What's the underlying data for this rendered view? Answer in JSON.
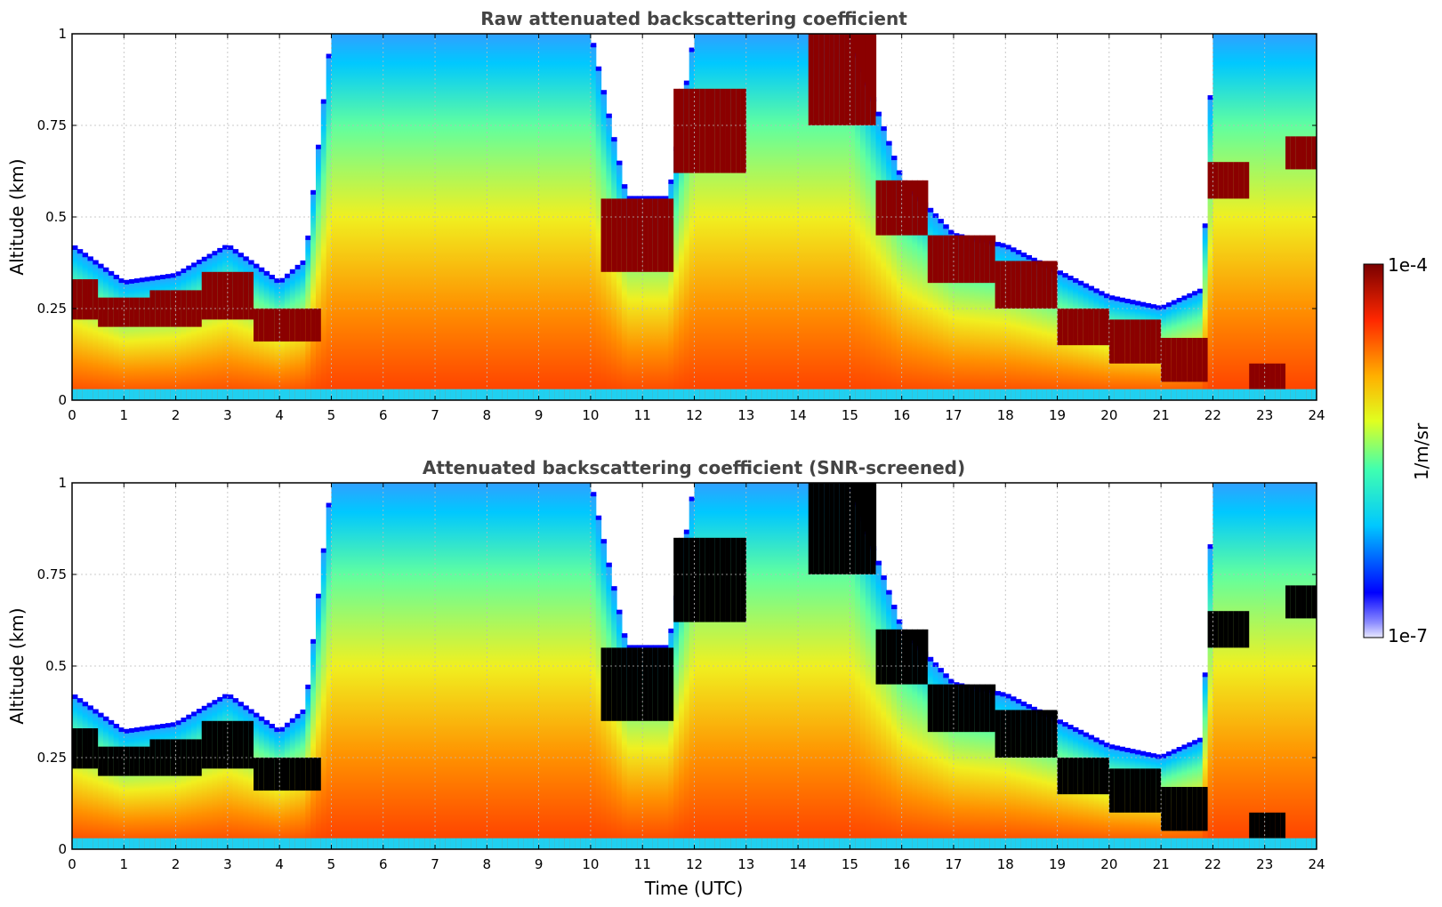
{
  "chart_data": [
    {
      "type": "heatmap",
      "title": "Raw attenuated backscattering coefficient",
      "xlabel": "",
      "ylabel": "Altitude (km)",
      "xlim": [
        0,
        24
      ],
      "ylim": [
        0,
        1
      ],
      "x_ticks": [
        "0",
        "1",
        "2",
        "3",
        "4",
        "5",
        "6",
        "7",
        "8",
        "9",
        "10",
        "11",
        "12",
        "13",
        "14",
        "15",
        "16",
        "17",
        "18",
        "19",
        "20",
        "21",
        "22",
        "23",
        "24"
      ],
      "y_ticks": [
        "0",
        "0.25",
        "0.5",
        "0.75",
        "1"
      ],
      "grid": true,
      "screened": false,
      "colormap": "jet",
      "layer_top_km": [
        [
          0,
          0.42
        ],
        [
          1,
          0.32
        ],
        [
          2,
          0.34
        ],
        [
          3,
          0.42
        ],
        [
          4,
          0.32
        ],
        [
          4.5,
          0.38
        ],
        [
          5,
          1.0
        ],
        [
          6,
          1.0
        ],
        [
          7,
          1.0
        ],
        [
          8,
          1.0
        ],
        [
          9,
          1.0
        ],
        [
          10,
          1.0
        ],
        [
          10.7,
          0.55
        ],
        [
          11.5,
          0.55
        ],
        [
          12,
          1.0
        ],
        [
          13,
          1.0
        ],
        [
          14,
          1.0
        ],
        [
          15,
          1.0
        ],
        [
          16,
          0.6
        ],
        [
          17,
          0.45
        ],
        [
          18,
          0.42
        ],
        [
          19,
          0.35
        ],
        [
          20,
          0.28
        ],
        [
          21,
          0.25
        ],
        [
          21.8,
          0.3
        ],
        [
          22,
          1.0
        ],
        [
          23,
          1.0
        ],
        [
          24,
          1.0
        ]
      ],
      "dark_band_km": [
        [
          0,
          0.22,
          0.33
        ],
        [
          1,
          0.2,
          0.28
        ],
        [
          2,
          0.2,
          0.3
        ],
        [
          3,
          0.22,
          0.35
        ],
        [
          4,
          0.16,
          0.25
        ],
        [
          11,
          0.35,
          0.55
        ],
        [
          12.2,
          0.62,
          0.85
        ],
        [
          15,
          0.75,
          1.0
        ],
        [
          16,
          0.45,
          0.6
        ],
        [
          17,
          0.32,
          0.45
        ],
        [
          18.5,
          0.25,
          0.38
        ],
        [
          19.5,
          0.15,
          0.25
        ],
        [
          20.5,
          0.1,
          0.22
        ],
        [
          21.5,
          0.05,
          0.17
        ],
        [
          22.3,
          0.55,
          0.65
        ],
        [
          23,
          0.03,
          0.1
        ],
        [
          23.8,
          0.63,
          0.72
        ]
      ]
    },
    {
      "type": "heatmap",
      "title": "Attenuated backscattering coefficient (SNR-screened)",
      "xlabel": "Time (UTC)",
      "ylabel": "Altitude (km)",
      "xlim": [
        0,
        24
      ],
      "ylim": [
        0,
        1
      ],
      "x_ticks": [
        "0",
        "1",
        "2",
        "3",
        "4",
        "5",
        "6",
        "7",
        "8",
        "9",
        "10",
        "11",
        "12",
        "13",
        "14",
        "15",
        "16",
        "17",
        "18",
        "19",
        "20",
        "21",
        "22",
        "23",
        "24"
      ],
      "y_ticks": [
        "0",
        "0.25",
        "0.5",
        "0.75",
        "1"
      ],
      "grid": true,
      "screened": true,
      "colormap": "jet"
    }
  ],
  "colorbar": {
    "label": "1/m/sr",
    "max_label": "1e-4",
    "min_label": "1e-7",
    "scale": "log",
    "range": [
      1e-07,
      0.0001
    ]
  },
  "colors": {
    "screened_mask": "#000000",
    "title": "#444444"
  }
}
